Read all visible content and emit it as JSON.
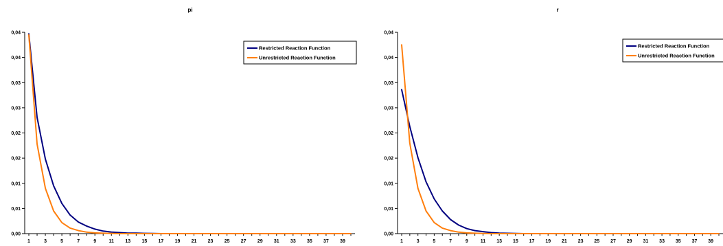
{
  "chart_data": [
    {
      "type": "line",
      "title": "pi",
      "xlabel": "",
      "ylabel": "",
      "x_range": [
        1,
        40
      ],
      "x_tick_labels": [
        "1",
        "3",
        "5",
        "7",
        "9",
        "11",
        "13",
        "15",
        "17",
        "19",
        "21",
        "23",
        "25",
        "27",
        "29",
        "31",
        "33",
        "35",
        "37",
        "39"
      ],
      "y_tick_labels": [
        "0,00",
        "0,01",
        "0,01",
        "0,02",
        "0,02",
        "0,03",
        "0,03",
        "0,04",
        "0,04"
      ],
      "ylim": [
        0,
        0.04
      ],
      "grid": false,
      "legend_position": "top-right",
      "series": [
        {
          "name": "Restricted Reaction Function",
          "color": "#000080",
          "x": [
            1,
            2,
            3,
            4,
            5,
            6,
            7,
            8,
            9,
            10,
            11,
            12,
            13,
            14,
            15,
            16,
            17,
            18,
            19,
            20,
            21,
            22,
            23,
            24,
            25,
            26,
            27,
            28,
            29,
            30,
            31,
            32,
            33,
            34,
            35,
            36,
            37,
            38,
            39,
            40
          ],
          "values": [
            0.0397,
            0.0231,
            0.0148,
            0.0095,
            0.006,
            0.0037,
            0.0023,
            0.0015,
            0.0009,
            0.0005,
            0.0003,
            0.0002,
            0.0001,
            0.0001,
            5e-05,
            3e-05,
            0,
            0,
            0,
            0,
            0,
            0,
            0,
            0,
            0,
            0,
            0,
            0,
            0,
            0,
            0,
            0,
            0,
            0,
            0,
            0,
            0,
            0,
            0,
            0
          ]
        },
        {
          "name": "Unrestricted Reaction Function",
          "color": "#FF7F0E",
          "x": [
            1,
            2,
            3,
            4,
            5,
            6,
            7,
            8,
            9,
            10,
            11,
            12,
            13,
            14,
            15,
            16,
            17,
            18,
            19,
            20,
            21,
            22,
            23,
            24,
            25,
            26,
            27,
            28,
            29,
            30,
            31,
            32,
            33,
            34,
            35,
            36,
            37,
            38,
            39,
            40
          ],
          "values": [
            0.0395,
            0.0178,
            0.009,
            0.0045,
            0.0022,
            0.0011,
            0.0006,
            0.0003,
            0.00015,
            8e-05,
            4e-05,
            0,
            0,
            0,
            0,
            0,
            0,
            0,
            0,
            0,
            0,
            0,
            0,
            0,
            0,
            0,
            0,
            0,
            0,
            0,
            0,
            0,
            0,
            0,
            0,
            0,
            0,
            0,
            0,
            0
          ]
        }
      ]
    },
    {
      "type": "line",
      "title": "r",
      "xlabel": "",
      "ylabel": "",
      "x_range": [
        1,
        40
      ],
      "x_tick_labels": [
        "1",
        "3",
        "5",
        "7",
        "9",
        "11",
        "13",
        "15",
        "17",
        "19",
        "21",
        "23",
        "25",
        "27",
        "29",
        "31",
        "33",
        "35",
        "37",
        "39"
      ],
      "y_tick_labels": [
        "0,00",
        "0,01",
        "0,01",
        "0,02",
        "0,02",
        "0,03",
        "0,03",
        "0,04",
        "0,04"
      ],
      "ylim": [
        0,
        0.04
      ],
      "grid": false,
      "legend_position": "top-right",
      "series": [
        {
          "name": "Restricted Reaction Function",
          "color": "#000080",
          "x": [
            1,
            2,
            3,
            4,
            5,
            6,
            7,
            8,
            9,
            10,
            11,
            12,
            13,
            14,
            15,
            16,
            17,
            18,
            19,
            20,
            21,
            22,
            23,
            24,
            25,
            26,
            27,
            28,
            29,
            30,
            31,
            32,
            33,
            34,
            35,
            36,
            37,
            38,
            39,
            40
          ],
          "values": [
            0.0286,
            0.0213,
            0.0151,
            0.0103,
            0.0069,
            0.0045,
            0.0028,
            0.0017,
            0.001,
            0.0006,
            0.0004,
            0.0002,
            0.0001,
            7e-05,
            4e-05,
            0,
            0,
            0,
            0,
            0,
            0,
            0,
            0,
            0,
            0,
            0,
            0,
            0,
            0,
            0,
            0,
            0,
            0,
            0,
            0,
            0,
            0,
            0,
            0,
            0
          ]
        },
        {
          "name": "Unrestricted Reaction Function",
          "color": "#FF7F0E",
          "x": [
            1,
            2,
            3,
            4,
            5,
            6,
            7,
            8,
            9,
            10,
            11,
            12,
            13,
            14,
            15,
            16,
            17,
            18,
            19,
            20,
            21,
            22,
            23,
            24,
            25,
            26,
            27,
            28,
            29,
            30,
            31,
            32,
            33,
            34,
            35,
            36,
            37,
            38,
            39,
            40
          ],
          "values": [
            0.0375,
            0.018,
            0.009,
            0.0045,
            0.0022,
            0.0011,
            0.0006,
            0.0003,
            0.00015,
            8e-05,
            4e-05,
            0,
            0,
            0,
            0,
            0,
            0,
            0,
            0,
            0,
            0,
            0,
            0,
            0,
            0,
            0,
            0,
            0,
            0,
            0,
            0,
            0,
            0,
            0,
            0,
            0,
            0,
            0,
            0,
            0
          ]
        }
      ]
    }
  ]
}
